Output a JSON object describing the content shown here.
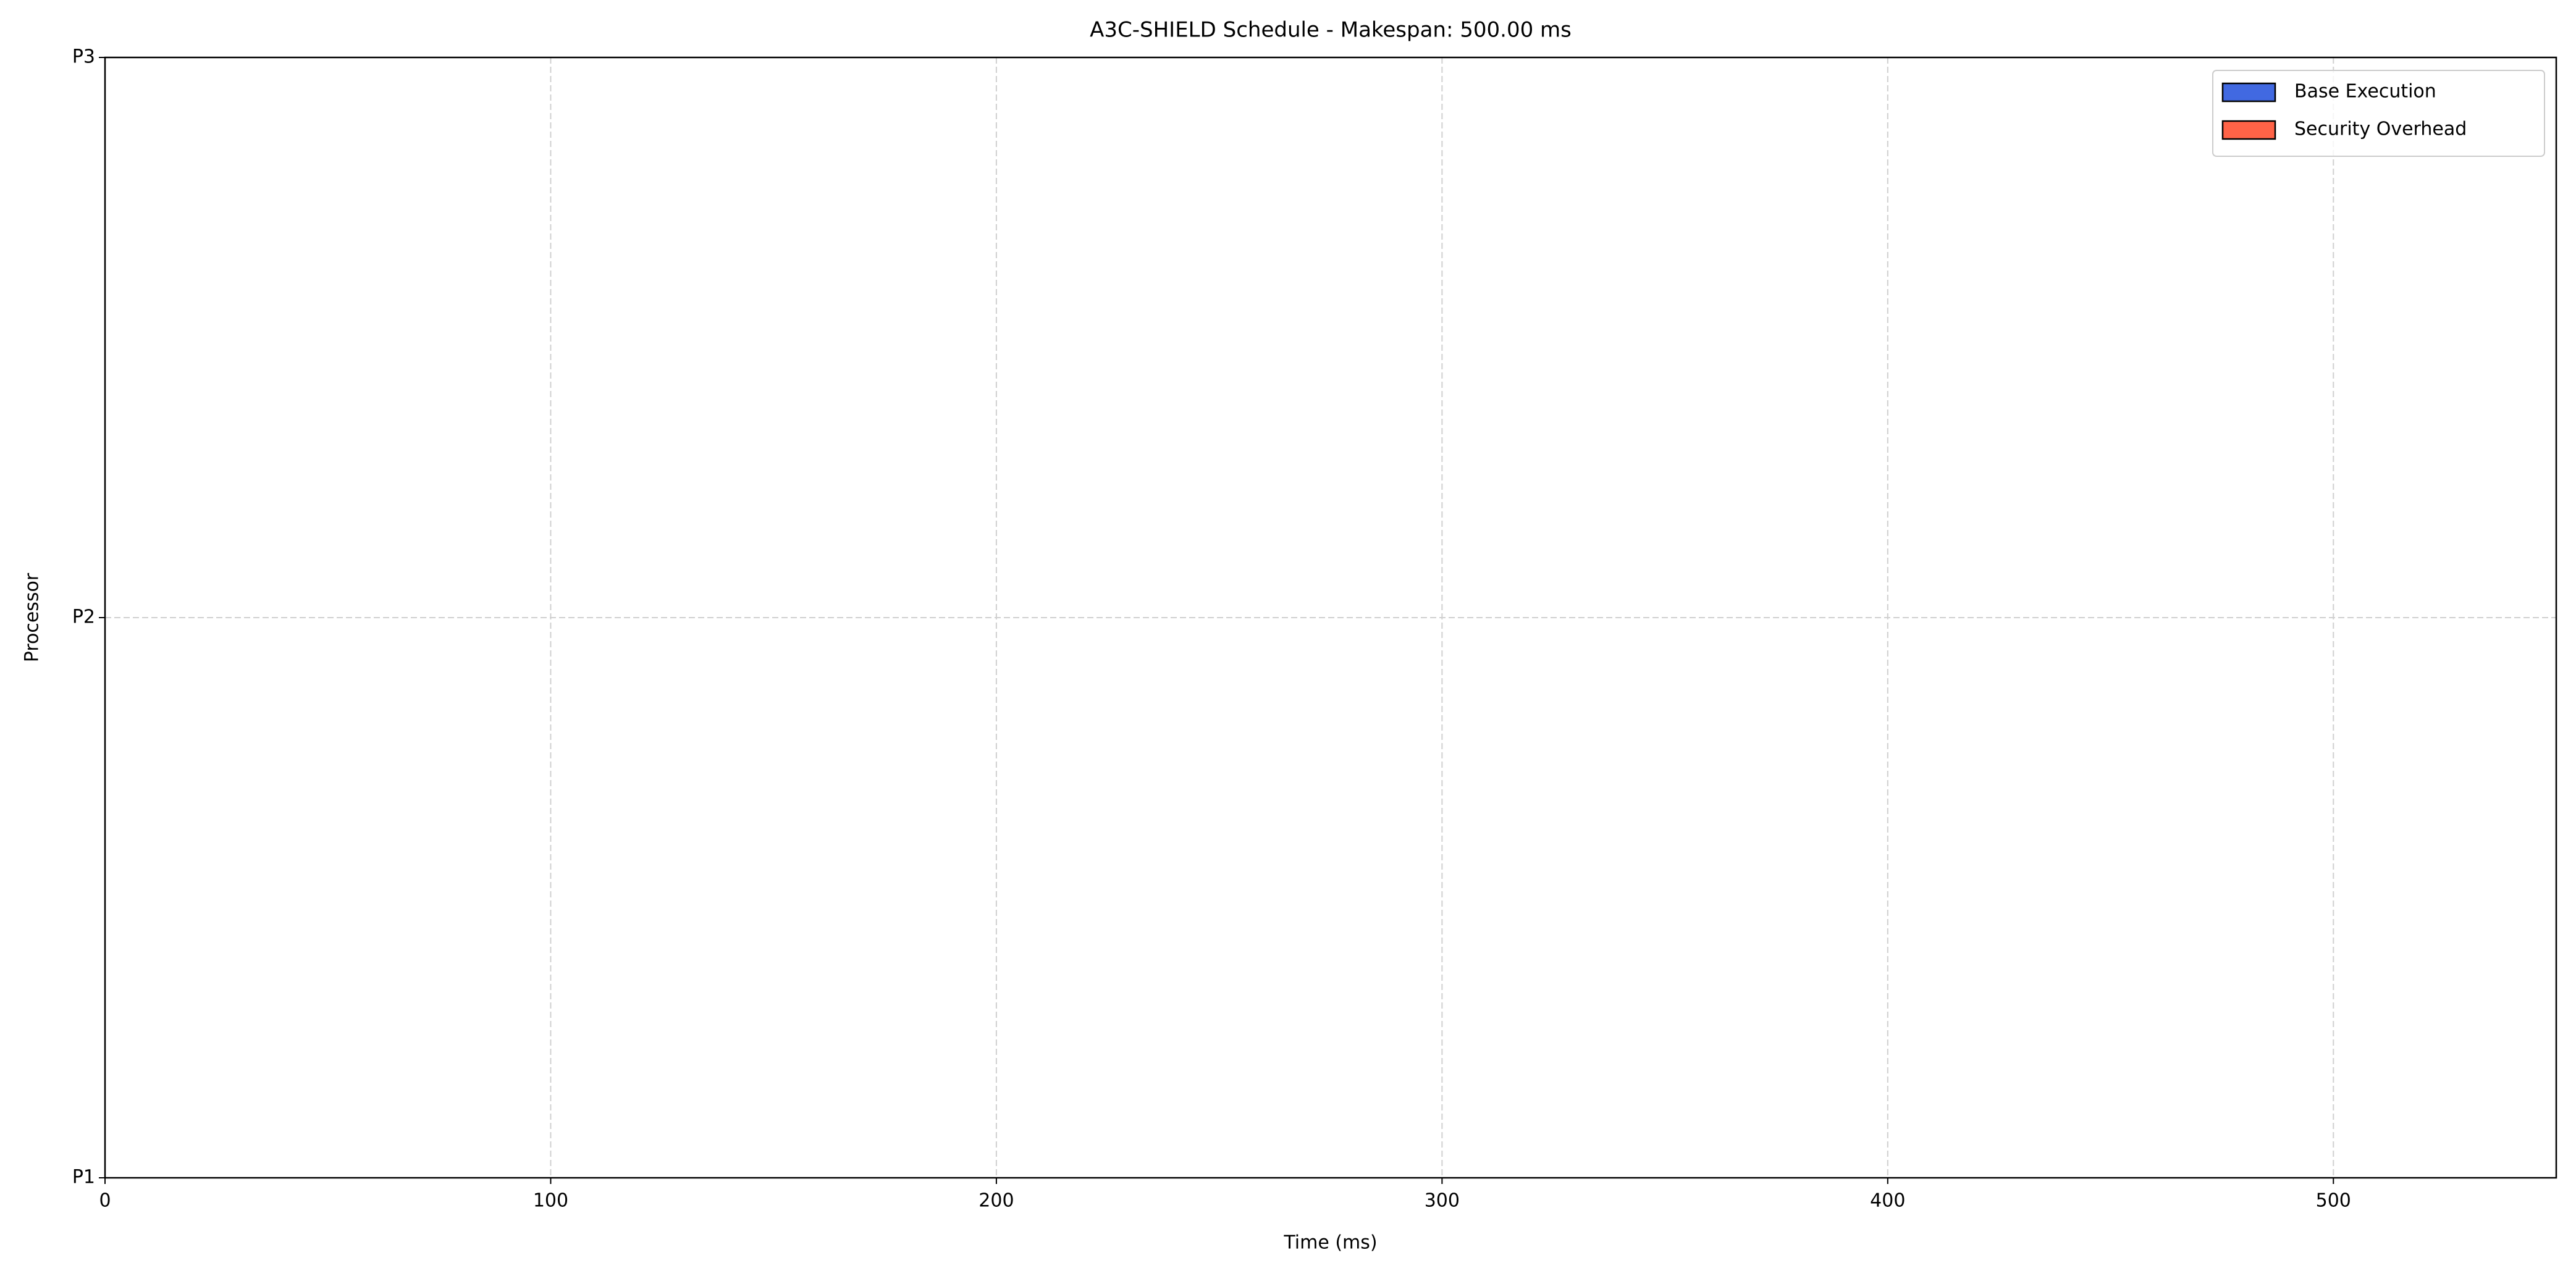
{
  "chart_data": {
    "type": "bar",
    "title": "A3C-SHIELD Schedule - Makespan: 500.00 ms",
    "x_label": "Time (ms)",
    "y_label": "Processor",
    "series": [
      {
        "name": "Base Execution",
        "color": "#4169e1",
        "values": []
      },
      {
        "name": "Security Overhead",
        "color": "#ff6347",
        "values": []
      }
    ],
    "xlim": [
      0,
      550
    ],
    "xticks": [
      0,
      100,
      200,
      300,
      400,
      500
    ],
    "ylim": [
      0,
      2
    ],
    "yticks": [
      {
        "value": 0,
        "label": "P1"
      },
      {
        "value": 1,
        "label": "P2"
      },
      {
        "value": 2,
        "label": "P3"
      }
    ],
    "grid": true,
    "legend": "upper right"
  }
}
